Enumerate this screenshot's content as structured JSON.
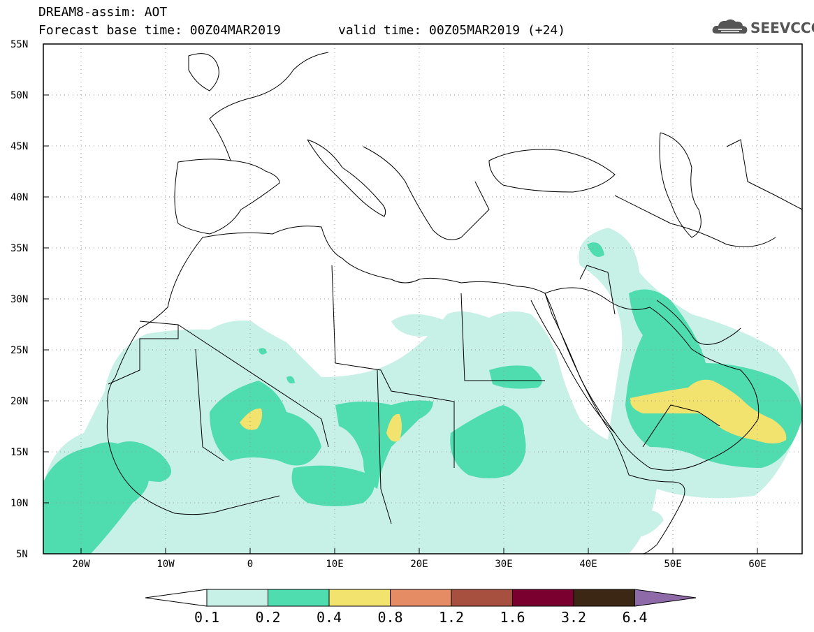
{
  "header": {
    "title": "DREAM8-assim: AOT",
    "base_time": "Forecast base time: 00Z04MAR2019",
    "valid_time": "valid time: 00Z05MAR2019 (+24)"
  },
  "logo": {
    "text": "SEEVCCC",
    "icon": "cloud-icon"
  },
  "map": {
    "lat_labels": [
      "55N",
      "50N",
      "45N",
      "40N",
      "35N",
      "30N",
      "25N",
      "20N",
      "15N",
      "10N",
      "5N"
    ],
    "lon_labels": [
      "20W",
      "10W",
      "0",
      "10E",
      "20E",
      "30E",
      "40E",
      "50E",
      "60E"
    ],
    "grid": true
  },
  "colorbar": {
    "labels": [
      "0.1",
      "0.2",
      "0.4",
      "0.8",
      "1.2",
      "1.6",
      "3.2",
      "6.4"
    ],
    "colors": [
      "#ffffff",
      "#c7f0e6",
      "#4fdcae",
      "#f2e26e",
      "#e58c64",
      "#a85040",
      "#7a0030",
      "#3c2614",
      "#8e6aa8"
    ]
  },
  "colors": {
    "low": "#c7f0e6",
    "mid": "#4fdcae",
    "high": "#f2e26e"
  }
}
